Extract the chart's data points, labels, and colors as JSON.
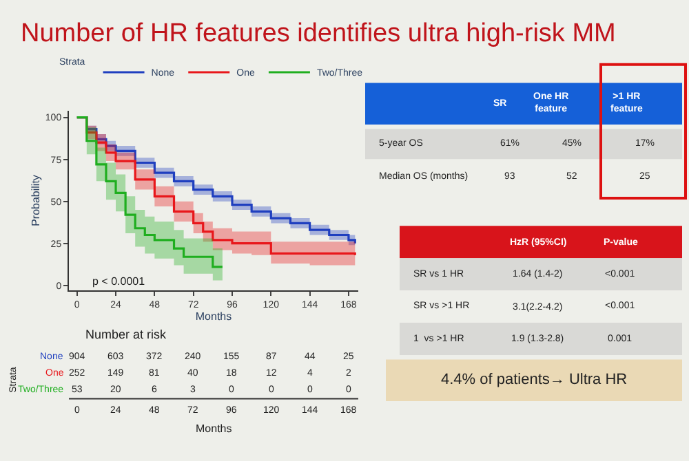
{
  "chart_data": {
    "type": "step",
    "title": "Number of HR features identifies ultra high-risk MM",
    "xlabel": "Months",
    "ylabel": "Probability",
    "legend_title": "Strata",
    "legend": "top",
    "series": [
      {
        "name": "None",
        "color": "#1f3fbf",
        "x": [
          0,
          6,
          12,
          18,
          24,
          36,
          48,
          60,
          72,
          84,
          96,
          108,
          120,
          132,
          144,
          156,
          168,
          172
        ],
        "values": [
          100,
          93,
          87,
          83,
          80,
          73,
          67,
          62,
          57,
          53,
          48,
          44,
          40,
          37,
          33,
          30,
          27,
          25
        ],
        "lower": [
          100,
          91,
          84,
          80,
          77,
          70,
          64,
          59,
          54,
          50,
          45,
          41,
          37,
          34,
          30,
          27,
          24,
          22
        ],
        "upper": [
          100,
          95,
          90,
          86,
          83,
          76,
          70,
          65,
          60,
          56,
          51,
          47,
          43,
          40,
          36,
          33,
          30,
          28
        ]
      },
      {
        "name": "One",
        "color": "#e8171b",
        "x": [
          0,
          6,
          12,
          18,
          24,
          36,
          48,
          60,
          72,
          78,
          84,
          96,
          108,
          120,
          132,
          144,
          168,
          172
        ],
        "values": [
          100,
          91,
          85,
          79,
          74,
          63,
          53,
          44,
          37,
          32,
          27,
          25,
          25,
          19,
          19,
          19,
          19,
          18
        ],
        "lower": [
          100,
          87,
          80,
          74,
          69,
          57,
          47,
          38,
          31,
          26,
          21,
          19,
          18,
          13,
          13,
          12,
          12,
          11
        ],
        "upper": [
          100,
          95,
          90,
          84,
          79,
          69,
          59,
          50,
          43,
          38,
          34,
          32,
          32,
          26,
          26,
          26,
          26,
          25
        ]
      },
      {
        "name": "Two/Three",
        "color": "#1fae1f",
        "x": [
          0,
          6,
          12,
          18,
          24,
          30,
          36,
          42,
          48,
          60,
          66,
          72,
          84,
          90
        ],
        "values": [
          100,
          86,
          72,
          62,
          55,
          42,
          34,
          30,
          27,
          22,
          17,
          17,
          11,
          11
        ],
        "lower": [
          100,
          78,
          62,
          51,
          44,
          31,
          23,
          19,
          16,
          12,
          7,
          7,
          3,
          3
        ],
        "upper": [
          100,
          94,
          82,
          73,
          66,
          53,
          45,
          41,
          38,
          33,
          28,
          28,
          22,
          22
        ]
      }
    ],
    "xlim": [
      -5,
      174
    ],
    "ylim": [
      -3,
      104
    ],
    "xticks": [
      0,
      24,
      48,
      72,
      96,
      120,
      144,
      168
    ],
    "yticks": [
      0,
      25,
      50,
      75,
      100
    ],
    "grid": false,
    "annotations": [
      "p < 0.0001",
      "SR",
      "One HR feature",
      ">1 HR feature",
      "5-year OS",
      "61%",
      "45%",
      "17%",
      "Median OS (months)",
      "93",
      "52",
      "25",
      "HzR (95%CI)",
      "P-value",
      "SR vs 1 HR",
      "1.64 (1.4-2)",
      "<0.001",
      "SR vs >1 HR",
      "3.1(2.2-4.2)",
      "<0.001",
      "1  vs >1 HR",
      "1.9 (1.3-2.8)",
      "0.001",
      "4.4% of patients→ Ultra HR",
      "Number at risk",
      "Strata",
      "904",
      "603",
      "372",
      "240",
      "155",
      "87",
      "44",
      "25",
      "252",
      "149",
      "81",
      "40",
      "18",
      "12",
      "4",
      "2",
      "53",
      "20",
      "6",
      "3",
      "0",
      "0",
      "0",
      "0",
      "0",
      "24",
      "48",
      "72",
      "96",
      "120",
      "144",
      "168",
      "Months"
    ]
  }
}
